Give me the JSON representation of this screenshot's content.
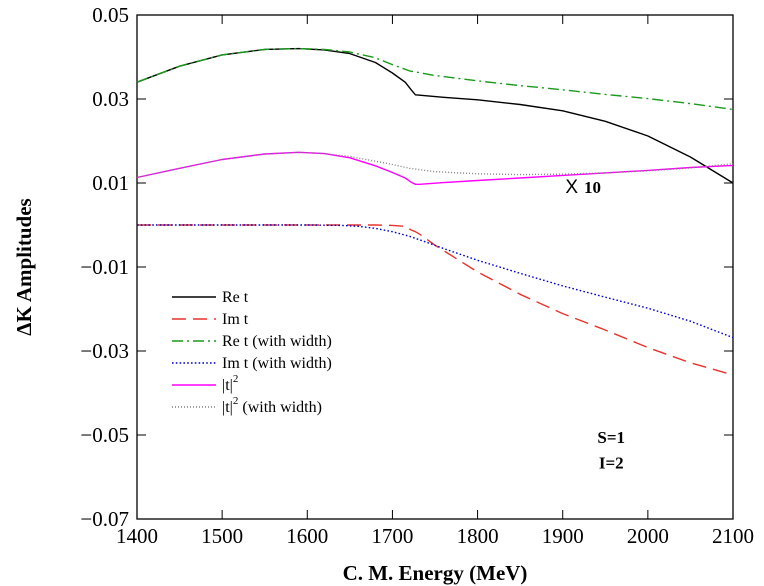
{
  "chart_data": {
    "type": "line",
    "title": "",
    "xlabel": "C. M. Energy (MeV)",
    "ylabel": "ΔK Amplitudes",
    "xlim": [
      1400,
      2100
    ],
    "ylim": [
      -0.07,
      0.05
    ],
    "xticks": [
      1400,
      1500,
      1600,
      1700,
      1800,
      1900,
      2000,
      2100
    ],
    "yticks": [
      -0.07,
      -0.05,
      -0.03,
      -0.01,
      0.01,
      0.03,
      0.05
    ],
    "xtick_labels": [
      "1400",
      "1500",
      "1600",
      "1700",
      "1800",
      "1900",
      "2000",
      "2100"
    ],
    "ytick_labels": [
      "−0.07",
      "−0.05",
      "−0.03",
      "−0.01",
      "0.01",
      "0.03",
      "0.05"
    ],
    "grid": false,
    "legend_position": "lower-left",
    "annotations": [
      {
        "text_x": "X",
        "text": "10",
        "x": 1925,
        "y": 0.0093
      },
      {
        "text": "S=1",
        "x": 1957,
        "y": -0.0505
      },
      {
        "text": "I=2",
        "x": 1957,
        "y": -0.0565
      }
    ],
    "series": [
      {
        "name": "Re t",
        "label": "Re t",
        "color": "#000000",
        "dash": "solid",
        "x": [
          1400,
          1450,
          1500,
          1550,
          1590,
          1620,
          1650,
          1680,
          1700,
          1715,
          1722,
          1727,
          1732,
          1760,
          1800,
          1850,
          1900,
          1950,
          2000,
          2050,
          2100
        ],
        "y": [
          0.034,
          0.0378,
          0.0405,
          0.0418,
          0.042,
          0.0417,
          0.0408,
          0.0387,
          0.0362,
          0.034,
          0.0322,
          0.031,
          0.0309,
          0.0304,
          0.0298,
          0.0287,
          0.0272,
          0.0247,
          0.0212,
          0.0162,
          0.01
        ]
      },
      {
        "name": "Im t",
        "label": "Im t",
        "color": "#e8322a",
        "dash": "long-dash",
        "x": [
          1400,
          1500,
          1600,
          1650,
          1680,
          1700,
          1715,
          1722,
          1727,
          1732,
          1750,
          1800,
          1850,
          1900,
          1950,
          2000,
          2050,
          2100
        ],
        "y": [
          0.0,
          0.0,
          0.0,
          0.0,
          0.0,
          -0.0001,
          -0.0003,
          -0.0012,
          -0.0016,
          -0.0022,
          -0.0048,
          -0.0112,
          -0.0165,
          -0.0211,
          -0.025,
          -0.0292,
          -0.0328,
          -0.0357
        ]
      },
      {
        "name": "Re t (with width)",
        "label": "Re t (with width)",
        "color": "#1a9a1a",
        "dash": "dash-dot",
        "x": [
          1400,
          1450,
          1500,
          1550,
          1590,
          1620,
          1650,
          1680,
          1700,
          1720,
          1750,
          1800,
          1850,
          1900,
          1950,
          2000,
          2050,
          2100
        ],
        "y": [
          0.034,
          0.0378,
          0.0405,
          0.0418,
          0.042,
          0.0418,
          0.0412,
          0.0398,
          0.0382,
          0.0367,
          0.0356,
          0.0343,
          0.0332,
          0.0322,
          0.0311,
          0.0301,
          0.0289,
          0.0275
        ]
      },
      {
        "name": "Im t (with width)",
        "label": "Im t (with width)",
        "color": "#0000cc",
        "dash": "dotted",
        "x": [
          1400,
          1500,
          1600,
          1640,
          1660,
          1680,
          1700,
          1720,
          1740,
          1760,
          1800,
          1850,
          1900,
          1950,
          2000,
          2050,
          2100
        ],
        "y": [
          0.0,
          0.0,
          0.0,
          -0.0001,
          -0.0003,
          -0.0008,
          -0.0016,
          -0.0027,
          -0.0041,
          -0.0056,
          -0.0084,
          -0.0115,
          -0.0145,
          -0.0172,
          -0.0198,
          -0.0229,
          -0.0268
        ]
      },
      {
        "name": "|t|^2",
        "label_main": "|t|",
        "label_sup": "2",
        "label_suffix": "",
        "color": "#ff00ff",
        "dash": "solid",
        "x": [
          1400,
          1450,
          1500,
          1550,
          1590,
          1620,
          1650,
          1680,
          1700,
          1715,
          1722,
          1727,
          1732,
          1760,
          1800,
          1850,
          1900,
          1950,
          2000,
          2050,
          2100
        ],
        "y": [
          0.0113,
          0.0135,
          0.0156,
          0.0169,
          0.0173,
          0.017,
          0.016,
          0.0141,
          0.0125,
          0.0112,
          0.0102,
          0.0097,
          0.0097,
          0.0101,
          0.0106,
          0.0112,
          0.0118,
          0.0124,
          0.013,
          0.0137,
          0.0142
        ]
      },
      {
        "name": "|t|^2 (with width)",
        "label_main": "|t|",
        "label_sup": "2",
        "label_suffix": " (with width)",
        "color": "#808080",
        "dash": "fine-dotted",
        "x": [
          1400,
          1450,
          1500,
          1550,
          1590,
          1620,
          1650,
          1680,
          1700,
          1720,
          1750,
          1800,
          1850,
          1900,
          1950,
          2000,
          2050,
          2100
        ],
        "y": [
          0.0113,
          0.0135,
          0.0156,
          0.0169,
          0.0173,
          0.017,
          0.0163,
          0.0152,
          0.0144,
          0.0135,
          0.0127,
          0.0122,
          0.012,
          0.0121,
          0.0124,
          0.0129,
          0.0136,
          0.0146
        ]
      }
    ]
  }
}
